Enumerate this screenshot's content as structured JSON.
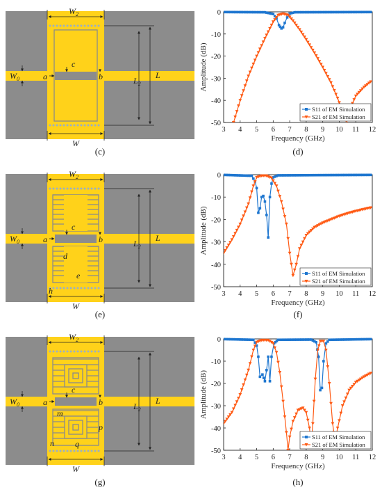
{
  "panels": [
    {
      "id": "c",
      "caption": "(c)",
      "labels": {
        "w2": "W",
        "w2_sub": "2",
        "w0": "W",
        "w0_sub": "0",
        "a": "a",
        "b": "b",
        "c": "c",
        "l2": "L",
        "l2_sub": "2",
        "l": "L",
        "w": "W"
      }
    },
    {
      "id": "e",
      "caption": "(e)",
      "labels": {
        "w2": "W",
        "w2_sub": "2",
        "w0": "W",
        "w0_sub": "0",
        "a": "a",
        "b": "b",
        "c": "c",
        "d": "d",
        "e": "e",
        "h": "h",
        "l2": "L",
        "l2_sub": "2",
        "l": "L",
        "w": "W"
      }
    },
    {
      "id": "g",
      "caption": "(g)",
      "labels": {
        "w2": "W",
        "w2_sub": "2",
        "w0": "W",
        "w0_sub": "0",
        "a": "a",
        "b": "b",
        "c": "c",
        "m": "m",
        "p": "p",
        "n": "n",
        "q": "q",
        "l2": "L",
        "l2_sub": "2",
        "l": "L",
        "w": "W"
      }
    }
  ],
  "charts": [
    {
      "id": "d",
      "caption": "(d)"
    },
    {
      "id": "f",
      "caption": "(f)"
    },
    {
      "id": "h",
      "caption": "(h)"
    }
  ],
  "chart_data": [
    {
      "type": "line",
      "xlabel": "Frequency (GHz)",
      "ylabel": "Amplitude (dB)",
      "xlim": [
        3,
        12
      ],
      "ylim": [
        -50,
        0
      ],
      "xticks": [
        3,
        4,
        5,
        6,
        7,
        8,
        9,
        10,
        11,
        12
      ],
      "yticks": [
        0,
        -10,
        -20,
        -30,
        -40,
        -50
      ],
      "legend": "bottom-right",
      "series": [
        {
          "name": "S11 of EM Simulation",
          "color": "#1f77d0",
          "marker": "square",
          "points": [
            [
              3,
              -0.1
            ],
            [
              5.5,
              -0.2
            ],
            [
              6.0,
              -1
            ],
            [
              6.2,
              -3
            ],
            [
              6.35,
              -6
            ],
            [
              6.5,
              -7.5
            ],
            [
              6.6,
              -7
            ],
            [
              6.7,
              -5
            ],
            [
              6.85,
              -2.5
            ],
            [
              7.0,
              -0.8
            ],
            [
              7.3,
              -0.2
            ],
            [
              12,
              -0.1
            ]
          ]
        },
        {
          "name": "S21 of EM Simulation",
          "color": "#ff5a14",
          "marker": "triangle-down",
          "points": [
            [
              3.6,
              -50
            ],
            [
              4,
              -40
            ],
            [
              4.5,
              -29
            ],
            [
              5,
              -20
            ],
            [
              5.5,
              -12
            ],
            [
              6,
              -4.5
            ],
            [
              6.3,
              -1.5
            ],
            [
              6.6,
              -0.9
            ],
            [
              6.9,
              -1.5
            ],
            [
              7.2,
              -4
            ],
            [
              7.6,
              -8
            ],
            [
              8,
              -12.5
            ],
            [
              8.5,
              -18.5
            ],
            [
              9,
              -25
            ],
            [
              9.5,
              -32
            ],
            [
              9.9,
              -39
            ],
            [
              10.1,
              -43
            ],
            [
              10.3,
              -48
            ],
            [
              10.5,
              -50
            ]
          ]
        },
        {
          "name": "",
          "color": "#ff5a14",
          "marker": "triangle-down",
          "points": [
            [
              10.7,
              -43
            ],
            [
              11,
              -38
            ],
            [
              11.5,
              -34
            ],
            [
              12,
              -31
            ]
          ]
        }
      ]
    },
    {
      "type": "line",
      "xlabel": "Frequency (GHz)",
      "ylabel": "Amplitude (dB)",
      "xlim": [
        3,
        12
      ],
      "ylim": [
        -50,
        0
      ],
      "xticks": [
        3,
        4,
        5,
        6,
        7,
        8,
        9,
        10,
        11,
        12
      ],
      "yticks": [
        0,
        -10,
        -20,
        -30,
        -40,
        -50
      ],
      "legend": "bottom-right",
      "series": [
        {
          "name": "S11 of EM Simulation",
          "color": "#1f77d0",
          "marker": "square",
          "points": [
            [
              3,
              -0.1
            ],
            [
              4.7,
              -0.5
            ],
            [
              4.9,
              -3
            ],
            [
              5.0,
              -6
            ],
            [
              5.1,
              -17
            ],
            [
              5.2,
              -15
            ],
            [
              5.3,
              -10
            ],
            [
              5.4,
              -9.5
            ],
            [
              5.5,
              -12
            ],
            [
              5.6,
              -18
            ],
            [
              5.7,
              -28
            ],
            [
              5.8,
              -10
            ],
            [
              5.9,
              -4
            ],
            [
              6.0,
              -1.2
            ],
            [
              6.3,
              -0.3
            ],
            [
              12,
              -0.1
            ]
          ]
        },
        {
          "name": "S21 of EM Simulation",
          "color": "#ff5a14",
          "marker": "triangle-down",
          "points": [
            [
              3,
              -35
            ],
            [
              3.5,
              -29
            ],
            [
              4,
              -22
            ],
            [
              4.5,
              -13
            ],
            [
              4.8,
              -5
            ],
            [
              5.0,
              -1.2
            ],
            [
              5.3,
              -0.5
            ],
            [
              5.6,
              -0.5
            ],
            [
              5.9,
              -1.5
            ],
            [
              6.2,
              -5
            ],
            [
              6.5,
              -12
            ],
            [
              6.8,
              -22
            ],
            [
              7.0,
              -35
            ],
            [
              7.2,
              -45
            ],
            [
              7.4,
              -40
            ],
            [
              7.6,
              -33
            ],
            [
              8,
              -27
            ],
            [
              8.5,
              -23.5
            ],
            [
              9,
              -21.5
            ],
            [
              9.5,
              -20
            ],
            [
              10,
              -18.5
            ],
            [
              10.5,
              -17.3
            ],
            [
              11,
              -16.3
            ],
            [
              11.5,
              -15.4
            ],
            [
              12,
              -14.6
            ]
          ]
        }
      ]
    },
    {
      "type": "line",
      "xlabel": "Frequency (GHz)",
      "ylabel": "Amplitude (dB)",
      "xlim": [
        3,
        12
      ],
      "ylim": [
        -50,
        0
      ],
      "xticks": [
        3,
        4,
        5,
        6,
        7,
        8,
        9,
        10,
        11,
        12
      ],
      "yticks": [
        0,
        -10,
        -20,
        -30,
        -40,
        -50
      ],
      "legend": "bottom-right",
      "series": [
        {
          "name": "S11 of EM Simulation",
          "color": "#1f77d0",
          "marker": "square",
          "points": [
            [
              3,
              -0.1
            ],
            [
              4.8,
              -0.4
            ],
            [
              5.0,
              -3
            ],
            [
              5.1,
              -8
            ],
            [
              5.2,
              -17
            ],
            [
              5.35,
              -16
            ],
            [
              5.5,
              -19
            ],
            [
              5.6,
              -14
            ],
            [
              5.7,
              -8
            ],
            [
              5.8,
              -19
            ],
            [
              5.9,
              -8
            ],
            [
              6.05,
              -2
            ],
            [
              6.3,
              -0.4
            ],
            [
              8.3,
              -0.3
            ],
            [
              8.6,
              -1.5
            ],
            [
              8.75,
              -8
            ],
            [
              8.85,
              -23
            ],
            [
              8.95,
              -22
            ],
            [
              9.05,
              -10
            ],
            [
              9.2,
              -2
            ],
            [
              9.4,
              -0.4
            ],
            [
              12,
              -0.1
            ]
          ]
        },
        {
          "name": "S21 of EM Simulation",
          "color": "#ff5a14",
          "marker": "triangle-down",
          "points": [
            [
              3,
              -38
            ],
            [
              3.5,
              -33
            ],
            [
              4,
              -25
            ],
            [
              4.5,
              -14
            ],
            [
              4.8,
              -5
            ],
            [
              5.0,
              -1.5
            ],
            [
              5.3,
              -0.6
            ],
            [
              5.7,
              -0.6
            ],
            [
              6.0,
              -2
            ],
            [
              6.2,
              -6
            ],
            [
              6.4,
              -15
            ],
            [
              6.6,
              -28
            ],
            [
              6.8,
              -42
            ],
            [
              6.9,
              -50
            ],
            [
              7.0,
              -44
            ],
            [
              7.2,
              -37
            ],
            [
              7.5,
              -32
            ],
            [
              7.8,
              -31
            ],
            [
              8.0,
              -33
            ],
            [
              8.2,
              -40
            ],
            [
              8.3,
              -48
            ],
            [
              8.4,
              -38
            ],
            [
              8.55,
              -18
            ],
            [
              8.7,
              -5
            ],
            [
              8.85,
              -1
            ],
            [
              9.05,
              -1
            ],
            [
              9.2,
              -5
            ],
            [
              9.4,
              -20
            ],
            [
              9.6,
              -38
            ],
            [
              9.75,
              -46
            ],
            [
              9.9,
              -40
            ],
            [
              10.2,
              -30
            ],
            [
              10.6,
              -23
            ],
            [
              11,
              -19.5
            ],
            [
              11.5,
              -17
            ],
            [
              12,
              -15
            ]
          ]
        }
      ]
    }
  ]
}
